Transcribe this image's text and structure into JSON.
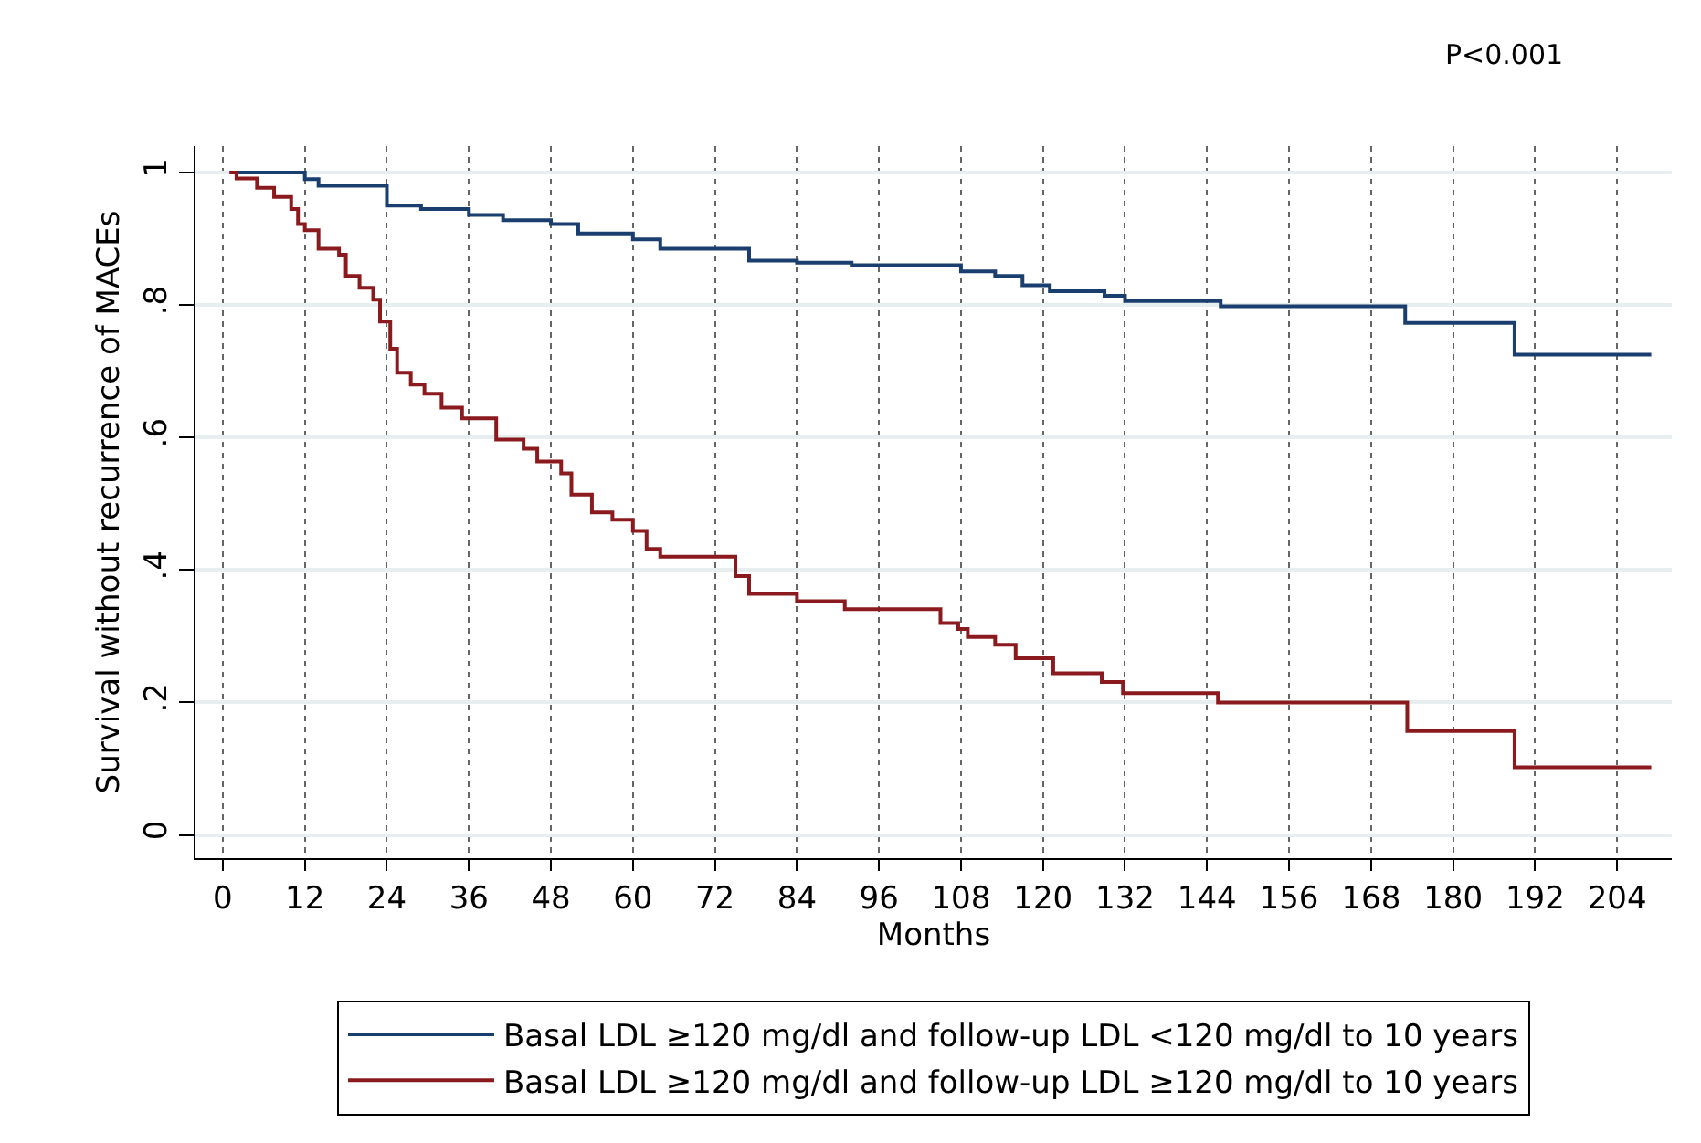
{
  "chart_data": {
    "type": "step",
    "xlabel": "Months",
    "ylabel": "Survival without recurrence of MACEs",
    "annotations": [
      "P<0.001"
    ],
    "xlim": [
      -4,
      212
    ],
    "xticks": [
      0,
      12,
      24,
      36,
      48,
      60,
      72,
      84,
      96,
      108,
      120,
      132,
      144,
      156,
      168,
      180,
      192,
      204
    ],
    "ylim": [
      -0.035,
      1.04
    ],
    "yticks": [
      {
        "value": 0,
        "label": "0"
      },
      {
        "value": 0.2,
        "label": ".2"
      },
      {
        "value": 0.4,
        "label": ".4"
      },
      {
        "value": 0.6,
        "label": ".6"
      },
      {
        "value": 0.8,
        "label": ".8"
      },
      {
        "value": 1,
        "label": "1"
      }
    ],
    "grid": true,
    "legend": "bottom",
    "line_style": "solid",
    "marker": "none",
    "series": [
      {
        "name": "Basal LDL ≥120 mg/dl and follow-up LDL <120 mg/dl to 10 years",
        "color": "#1a3f6e",
        "x": [
          1,
          12,
          14,
          24,
          29,
          36,
          41,
          48,
          52,
          60,
          64,
          77,
          84,
          92,
          108,
          113,
          117,
          121,
          129,
          132,
          146,
          173,
          189,
          209
        ],
        "values": [
          1,
          0.99,
          0.98,
          0.95,
          0.945,
          0.936,
          0.928,
          0.922,
          0.908,
          0.899,
          0.885,
          0.867,
          0.864,
          0.86,
          0.851,
          0.844,
          0.83,
          0.821,
          0.814,
          0.806,
          0.798,
          0.773,
          0.725,
          0.725
        ]
      },
      {
        "name": "Basal LDL ≥120 mg/dl and follow-up LDL ≥120 mg/dl to 10 years",
        "color": "#8b1a1f",
        "x": [
          1,
          2,
          5,
          7.5,
          10,
          11,
          12,
          14,
          17,
          18,
          20,
          22,
          23,
          24.5,
          25.5,
          27.5,
          29.5,
          32,
          35,
          40,
          44,
          46,
          49.5,
          51,
          54,
          57,
          60,
          62,
          64,
          75,
          77,
          84,
          91,
          105,
          107.6,
          109,
          113,
          116,
          121.5,
          128.6,
          131.7,
          145.6,
          173.3,
          189,
          209
        ],
        "values": [
          1,
          0.991,
          0.977,
          0.963,
          0.945,
          0.922,
          0.913,
          0.885,
          0.876,
          0.844,
          0.826,
          0.808,
          0.775,
          0.734,
          0.698,
          0.68,
          0.666,
          0.645,
          0.629,
          0.597,
          0.583,
          0.564,
          0.546,
          0.514,
          0.487,
          0.476,
          0.459,
          0.432,
          0.42,
          0.391,
          0.364,
          0.353,
          0.341,
          0.32,
          0.311,
          0.299,
          0.287,
          0.267,
          0.244,
          0.231,
          0.214,
          0.2,
          0.157,
          0.102,
          0.102
        ]
      }
    ]
  }
}
